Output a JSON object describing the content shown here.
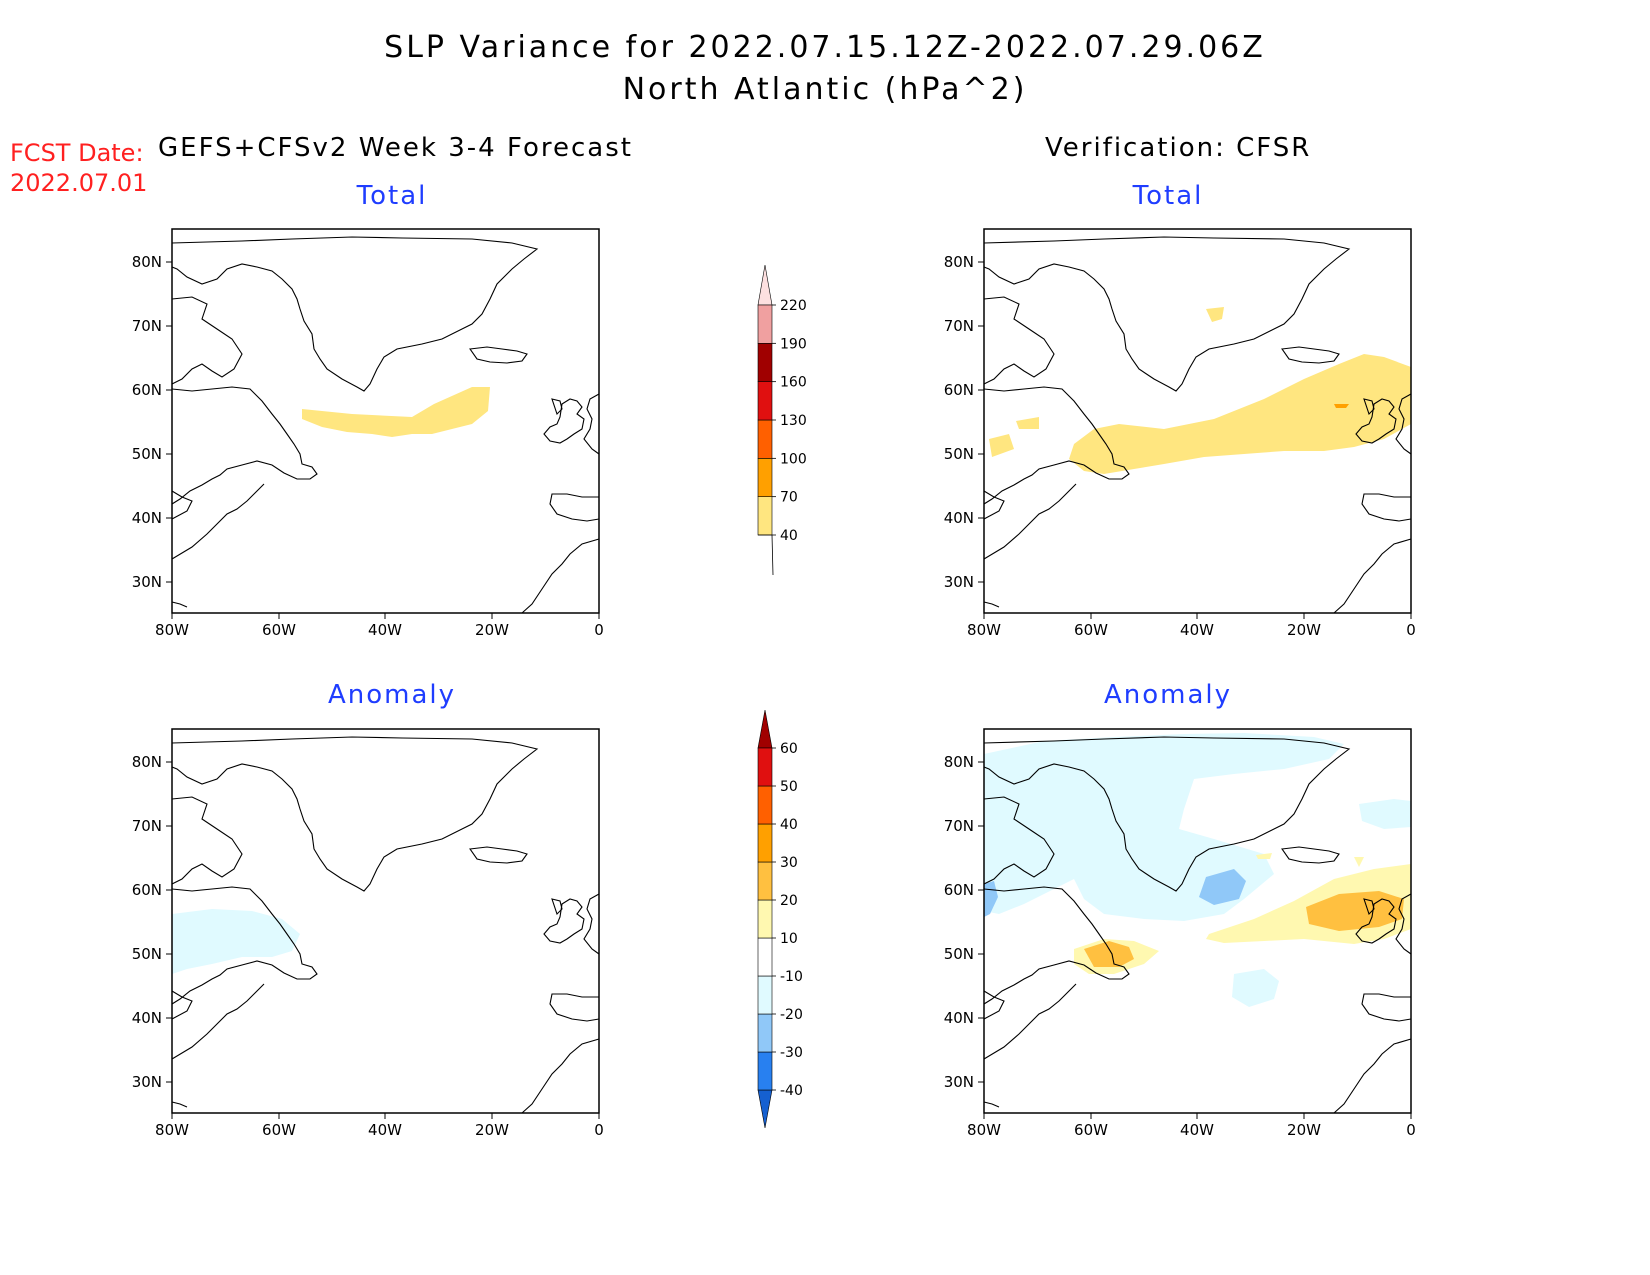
{
  "title_line1": "SLP Variance for 2022.07.15.12Z-2022.07.29.06Z",
  "title_line2": "North Atlantic (hPa^2)",
  "fcst_label": "FCST Date:",
  "fcst_date": "2022.07.01",
  "left_heading": "GEFS+CFSv2 Week 3-4 Forecast",
  "right_heading": "Verification: CFSR",
  "total_label": "Total",
  "anomaly_label": "Anomaly",
  "lat_ticks": [
    "80N",
    "70N",
    "60N",
    "50N",
    "40N",
    "30N"
  ],
  "lon_ticks": [
    "80W",
    "60W",
    "40W",
    "20W",
    "0"
  ],
  "colors": {
    "title_blue": "#1f3dff",
    "fcst_red": "#ff2020"
  },
  "total_colorbar": {
    "labels": [
      "40",
      "70",
      "100",
      "130",
      "160",
      "190",
      "220"
    ],
    "colors": [
      "#ffe680",
      "#ffa000",
      "#ff6000",
      "#e01010",
      "#a00000",
      "#f0a0a0",
      "#fde0e0"
    ]
  },
  "anomaly_colorbar": {
    "labels": [
      "-40",
      "-30",
      "-20",
      "-10",
      "10",
      "20",
      "30",
      "40",
      "50",
      "60"
    ],
    "colors": [
      "#1560d0",
      "#2880f0",
      "#90c8f8",
      "#e0faff",
      "#ffffff",
      "#fff8b0",
      "#ffc040",
      "#ffa000",
      "#ff6000",
      "#e01010",
      "#a00000"
    ]
  }
}
